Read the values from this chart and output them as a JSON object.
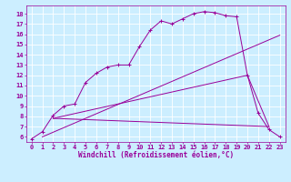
{
  "xlabel": "Windchill (Refroidissement éolien,°C)",
  "bg_color": "#cceeff",
  "line_color": "#990099",
  "grid_color": "#ffffff",
  "xlim": [
    -0.5,
    23.5
  ],
  "ylim": [
    5.5,
    18.8
  ],
  "xticks": [
    0,
    1,
    2,
    3,
    4,
    5,
    6,
    7,
    8,
    9,
    10,
    11,
    12,
    13,
    14,
    15,
    16,
    17,
    18,
    19,
    20,
    21,
    22,
    23
  ],
  "yticks": [
    6,
    7,
    8,
    9,
    10,
    11,
    12,
    13,
    14,
    15,
    16,
    17,
    18
  ],
  "line1_x": [
    0,
    1,
    2,
    3,
    4,
    5,
    6,
    7,
    8,
    9,
    10,
    11,
    12,
    13,
    14,
    15,
    16,
    17,
    18,
    19,
    20,
    21,
    22,
    23
  ],
  "line1_y": [
    5.8,
    6.5,
    8.1,
    9.0,
    9.2,
    11.3,
    12.2,
    12.8,
    13.0,
    13.0,
    14.8,
    16.4,
    17.3,
    17.0,
    17.5,
    18.0,
    18.2,
    18.1,
    17.8,
    17.7,
    12.0,
    8.3,
    6.7,
    6.0
  ],
  "line2_x": [
    1,
    23
  ],
  "line2_y": [
    6.0,
    15.9
  ],
  "line3_x": [
    2,
    22
  ],
  "line3_y": [
    7.8,
    7.0
  ],
  "line4_x": [
    2,
    20,
    22
  ],
  "line4_y": [
    7.8,
    12.0,
    7.0
  ],
  "xlabel_fontsize": 5.5,
  "tick_fontsize": 5
}
